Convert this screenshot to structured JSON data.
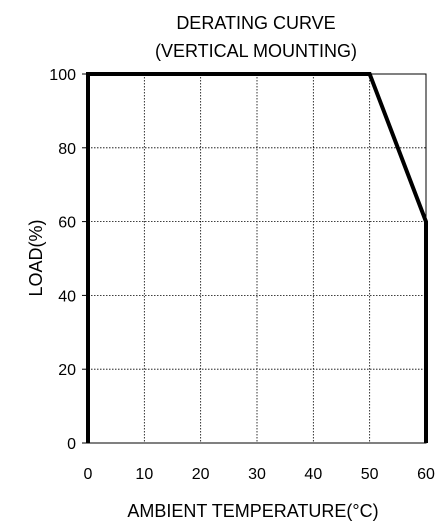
{
  "chart_data": {
    "type": "line",
    "title_lines": [
      "DERATING CURVE",
      "(VERTICAL MOUNTING)"
    ],
    "xlabel": "AMBIENT TEMPERATURE(°C)",
    "ylabel": "LOAD(%)",
    "xlim": [
      0,
      60
    ],
    "ylim": [
      0,
      100
    ],
    "x_ticks": [
      0,
      10,
      20,
      30,
      40,
      50,
      60
    ],
    "y_ticks": [
      0,
      20,
      40,
      60,
      80,
      100
    ],
    "grid": true,
    "grid_style": "dotted",
    "series": [
      {
        "color": "#000000",
        "points": [
          {
            "x": 0,
            "y": 0
          },
          {
            "x": 0,
            "y": 100
          },
          {
            "x": 50,
            "y": 100
          },
          {
            "x": 60,
            "y": 60
          },
          {
            "x": 60,
            "y": 0
          }
        ]
      }
    ]
  }
}
